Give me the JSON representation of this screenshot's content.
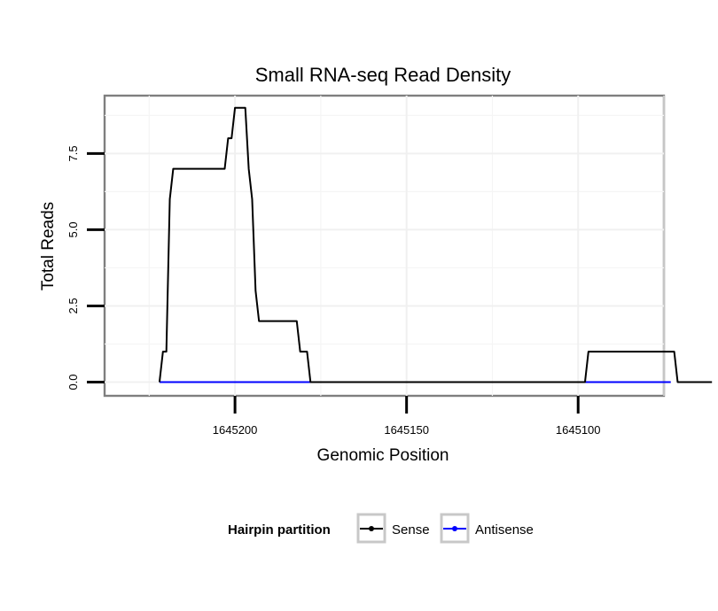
{
  "chart_data": {
    "type": "line",
    "title": "Small RNA-seq Read Density",
    "xlabel": "Genomic Position",
    "ylabel": "Total Reads",
    "x_reversed": true,
    "xlim": [
      1645238,
      1645075
    ],
    "ylim": [
      -0.45,
      9.4
    ],
    "x_ticks": [
      1645200,
      1645150,
      1645100
    ],
    "x_tick_labels": [
      "1645200",
      "1645150",
      "1645100"
    ],
    "y_ticks": [
      0,
      2.5,
      5,
      7.5
    ],
    "y_tick_labels": [
      "0.0",
      "2.5",
      "5.0",
      "7.5"
    ],
    "grid": true,
    "legend": {
      "title": "Hairpin partition",
      "position": "bottom"
    },
    "series": [
      {
        "name": "Sense",
        "color": "#000000",
        "x": [
          1645222,
          1645221,
          1645220,
          1645219,
          1645219,
          1645218,
          1645217,
          1645216,
          1645214,
          1645212,
          1645211,
          1645211,
          1645210,
          1645208,
          1645207,
          1645206,
          1645204,
          1645203,
          1645202,
          1645201,
          1645200,
          1645199,
          1645198,
          1645197,
          1645196,
          1645195,
          1645194,
          1645193,
          1645192,
          1645191,
          1645189,
          1645188,
          1645187,
          1645186,
          1645185,
          1645184,
          1645182,
          1645181,
          1645180,
          1645179,
          1645178,
          1645177,
          1645176,
          1645098,
          1645097,
          1645096,
          1645073,
          1645072,
          1645071,
          1645061
        ],
        "y": [
          0,
          1,
          1,
          6,
          6,
          7,
          7,
          7,
          7,
          7,
          7,
          7,
          7,
          7,
          7,
          7,
          7,
          7,
          8,
          8,
          9,
          9,
          9,
          9,
          7,
          6,
          3,
          2,
          2,
          2,
          2,
          2,
          2,
          2,
          2,
          2,
          2,
          1,
          1,
          1,
          0,
          0,
          0,
          0,
          1,
          1,
          1,
          1,
          0,
          0
        ]
      },
      {
        "name": "Antisense",
        "color": "#0000ff",
        "x": [
          1645222,
          1645176,
          1645098,
          1645073
        ],
        "y": [
          0,
          0,
          0,
          0
        ]
      }
    ]
  }
}
